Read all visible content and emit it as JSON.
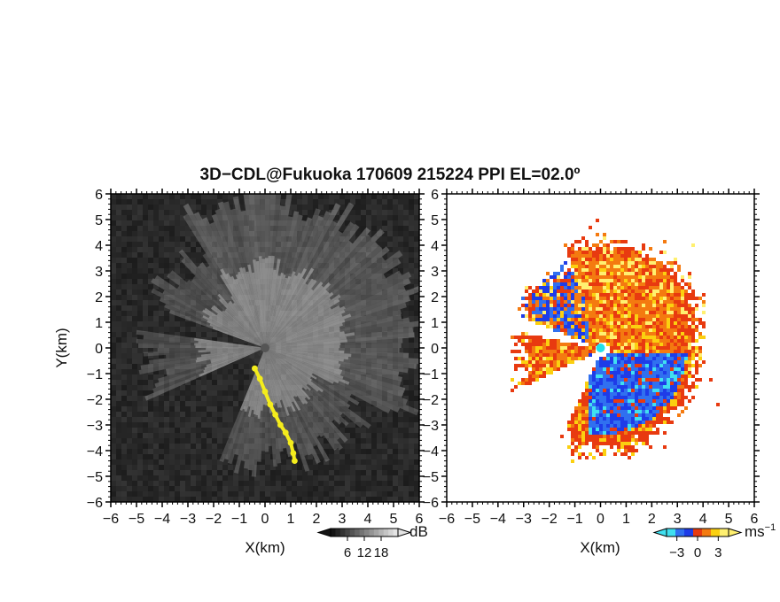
{
  "title": "3D−CDL@Fukuoka 170609 215224 PPI EL=02.0º",
  "colors": {
    "intensity_bg": "#262626",
    "intensity_highlight": "#f4ec1c",
    "center_marker_left": "#555555",
    "center_marker_right": "#20e0e8",
    "velocity_palette": [
      "#40e0f0",
      "#3070f0",
      "#1e3ce8",
      "#e83a10",
      "#f47a10",
      "#fbd010",
      "#fff070"
    ]
  },
  "chart_data": [
    {
      "type": "heatmap",
      "panel": "intensity",
      "x_range": [
        -6,
        6
      ],
      "y_range": [
        -6,
        6
      ],
      "x_ticks": [
        -6,
        -5,
        -4,
        -3,
        -2,
        -1,
        0,
        1,
        2,
        3,
        4,
        5,
        6
      ],
      "y_ticks": [
        -6,
        -5,
        -4,
        -3,
        -2,
        -1,
        0,
        1,
        2,
        3,
        4,
        5,
        6
      ],
      "xlabel": "X(km)",
      "ylabel": "Y(km)",
      "colorbar": {
        "unit": "dB",
        "ticks": [
          6,
          12,
          18
        ],
        "range": [
          0,
          24
        ],
        "colormap": "grayscale"
      },
      "highlight_trace": {
        "color": "yellow",
        "points": [
          [
            -0.4,
            -0.8
          ],
          [
            -0.2,
            -1.2
          ],
          [
            0.0,
            -1.7
          ],
          [
            0.2,
            -2.2
          ],
          [
            0.4,
            -2.6
          ],
          [
            0.6,
            -3.0
          ],
          [
            0.8,
            -3.3
          ],
          [
            1.0,
            -3.7
          ],
          [
            1.1,
            -4.1
          ],
          [
            1.15,
            -4.4
          ]
        ]
      }
    },
    {
      "type": "heatmap",
      "panel": "velocity",
      "x_range": [
        -6,
        6
      ],
      "y_range": [
        -6,
        6
      ],
      "x_ticks": [
        -6,
        -5,
        -4,
        -3,
        -2,
        -1,
        0,
        1,
        2,
        3,
        4,
        5,
        6
      ],
      "y_ticks": [
        -6,
        -5,
        -4,
        -3,
        -2,
        -1,
        0,
        1,
        2,
        3,
        4,
        5,
        6
      ],
      "xlabel": "X(km)",
      "ylabel": "",
      "colorbar": {
        "unit": "ms−1",
        "unit_base": "ms",
        "unit_exp": "−1",
        "ticks": [
          -3,
          0,
          3
        ],
        "tick_labels": [
          "−3",
          "0",
          "3"
        ],
        "range": [
          -4.5,
          4.5
        ],
        "colormap": "cyan-blue-red-orange-yellow"
      },
      "data_extent_km": 4.3
    }
  ]
}
